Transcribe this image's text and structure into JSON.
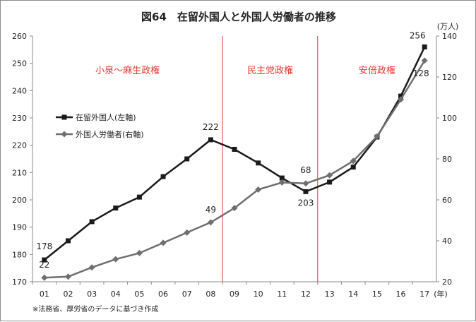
{
  "chart_data": {
    "type": "line",
    "title": "図64　在留外国人と外国人労働者の推移",
    "categories": [
      "01",
      "02",
      "03",
      "04",
      "05",
      "06",
      "07",
      "08",
      "09",
      "10",
      "11",
      "12",
      "13",
      "14",
      "15",
      "16",
      "17"
    ],
    "x_unit": "(年)",
    "left_axis": {
      "min": 170,
      "max": 260,
      "step": 10,
      "ticks": [
        "170",
        "180",
        "190",
        "200",
        "210",
        "220",
        "230",
        "240",
        "250",
        "260"
      ]
    },
    "right_axis": {
      "min": 20,
      "max": 140,
      "step": 20,
      "unit": "(万人)",
      "ticks": [
        "20",
        "40",
        "60",
        "80",
        "100",
        "120",
        "140"
      ]
    },
    "series": [
      {
        "name": "在留外国人(左軸)",
        "axis": "left",
        "color": "#1a1a1a",
        "marker": "square",
        "values": [
          178,
          185,
          192,
          197,
          201,
          208.5,
          215,
          222,
          218.5,
          213.5,
          208,
          203,
          206.5,
          212,
          223,
          238,
          256
        ]
      },
      {
        "name": "外国人労働者(右軸)",
        "axis": "right",
        "color": "#6f6f6f",
        "marker": "diamond",
        "values": [
          22,
          22.5,
          27,
          31,
          34,
          39,
          44,
          49,
          56,
          65,
          68.5,
          68,
          72,
          79,
          91,
          109,
          128
        ]
      }
    ],
    "data_labels": [
      {
        "series": 0,
        "index": 0,
        "text": "178"
      },
      {
        "series": 0,
        "index": 7,
        "text": "222"
      },
      {
        "series": 0,
        "index": 11,
        "text": "203"
      },
      {
        "series": 0,
        "index": 16,
        "text": "256"
      },
      {
        "series": 1,
        "index": 0,
        "text": "22"
      },
      {
        "series": 1,
        "index": 7,
        "text": "49"
      },
      {
        "series": 1,
        "index": 11,
        "text": "68"
      },
      {
        "series": 1,
        "index": 16,
        "text": "128"
      }
    ],
    "eras": [
      {
        "label": "小泉〜麻生政権",
        "from": "01",
        "to": "08"
      },
      {
        "label": "民主党政権",
        "from": "09",
        "to": "12"
      },
      {
        "label": "安倍政権",
        "from": "13",
        "to": "17"
      }
    ],
    "era_color": "#e03c31",
    "grid": false,
    "legend_position": "top-left",
    "source_note": "※法務省、厚労省のデータに基づき作成"
  }
}
